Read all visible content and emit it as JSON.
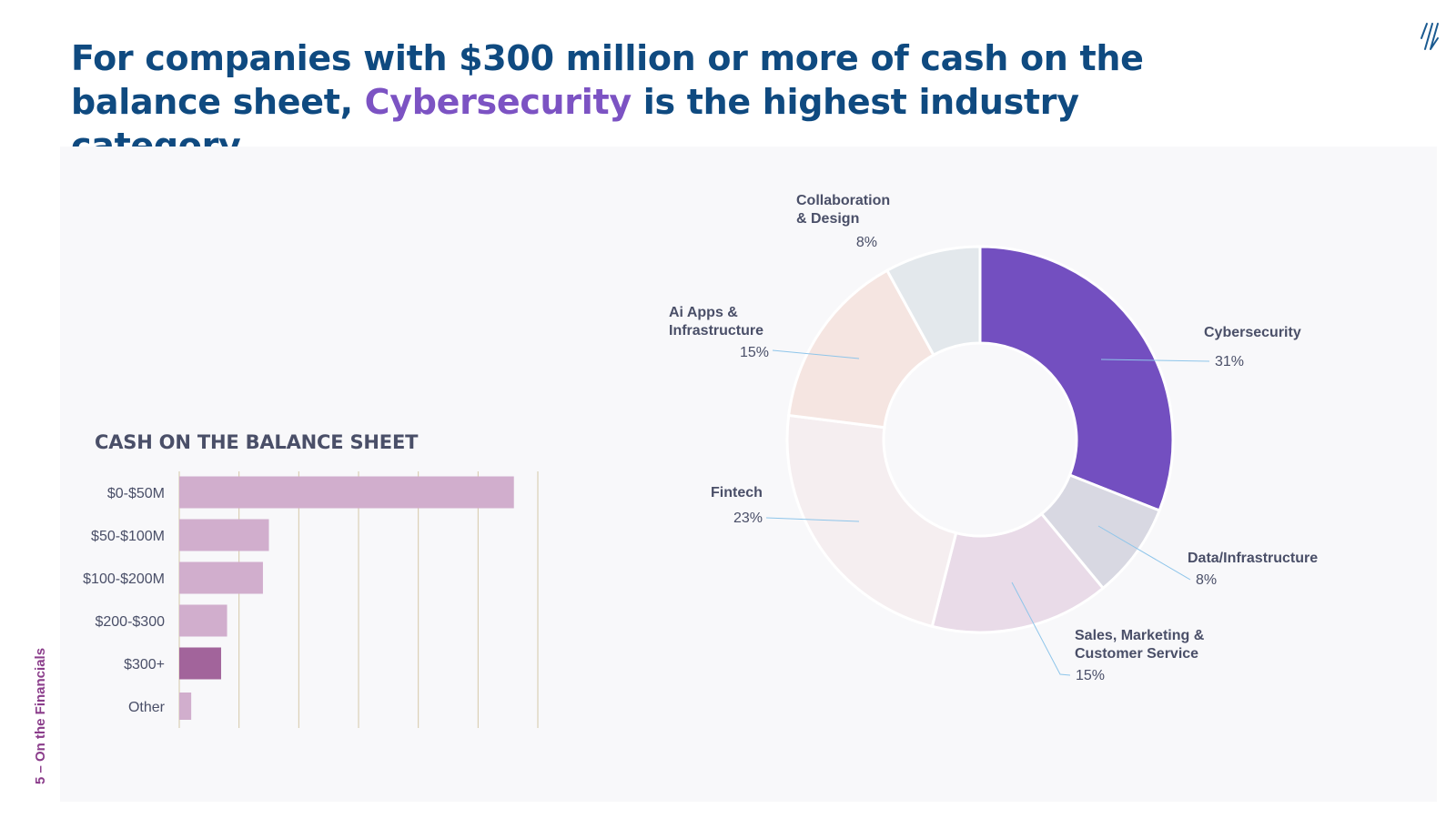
{
  "title": {
    "part1": "For companies with $300 million or more of cash on the balance sheet,",
    "highlight": "Cybersecurity",
    "part2": "is the highest industry category."
  },
  "side_label": "5 – On the Financials",
  "colors": {
    "title": "#0f4a80",
    "highlight": "#7c53c3",
    "bar": "#d1aecd",
    "bar_highlight": "#a2649b",
    "panel": "#f8f8fa",
    "leader": "#8ec5ea"
  },
  "chart_data": [
    {
      "type": "bar",
      "orientation": "horizontal",
      "title": "CASH ON THE BALANCE SHEET",
      "categories": [
        "$0-$50M",
        "$50-$100M",
        "$100-$200M",
        "$200-$300",
        "$300+",
        "Other"
      ],
      "values": [
        56,
        15,
        14,
        8,
        7,
        2
      ],
      "highlight_category": "$300+",
      "xlim": [
        0,
        60
      ],
      "grid": true
    },
    {
      "type": "pie",
      "style": "donut",
      "labels": [
        "Cybersecurity",
        "Data/Infrastructure",
        "Sales, Marketing & Customer Service",
        "Fintech",
        "Ai Apps & Infrastructure",
        "Collaboration & Design"
      ],
      "values": [
        31,
        8,
        15,
        23,
        15,
        8
      ],
      "value_labels": [
        "31%",
        "8%",
        "15%",
        "23%",
        "15%",
        "8%"
      ],
      "colors": [
        "#734fc0",
        "#d8d8e2",
        "#e9dbe8",
        "#f5eef0",
        "#f5e5e1",
        "#e3e8ec"
      ]
    }
  ]
}
